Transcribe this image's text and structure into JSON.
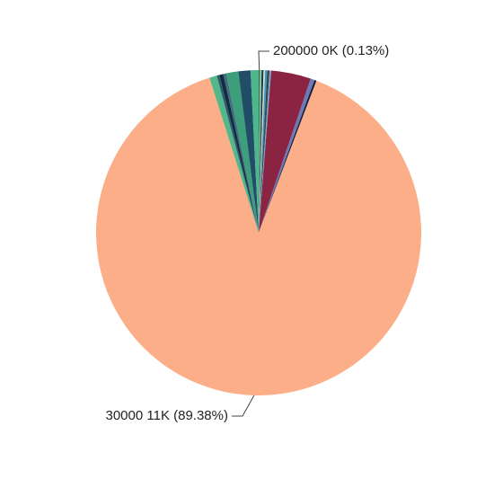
{
  "chart_data": {
    "type": "pie",
    "labeled_slices": [
      {
        "label": "30000 11K (89.38%)",
        "percent": 89.38,
        "color": "#FCAE88"
      },
      {
        "label": "200000 0K (0.13%)",
        "percent": 0.13,
        "color": "#3B6E47"
      }
    ],
    "unlabeled_slices": [
      {
        "percent": 0.15,
        "color": "#8DD3A3"
      },
      {
        "percent": 0.2,
        "color": "#1E3A5F"
      },
      {
        "percent": 0.15,
        "color": "#C8E6B4"
      },
      {
        "percent": 0.2,
        "color": "#4A90C2"
      },
      {
        "percent": 0.25,
        "color": "#2F4F4F"
      },
      {
        "percent": 0.15,
        "color": "#7FA8D8"
      },
      {
        "percent": 3.96,
        "color": "#8B2443"
      },
      {
        "percent": 0.4,
        "color": "#6C7BB8"
      },
      {
        "percent": 0.2,
        "color": "#1A1A3A"
      },
      {
        "percent": 0.75,
        "color": "#53B78A"
      },
      {
        "percent": 0.25,
        "color": "#2E5A6E"
      },
      {
        "percent": 0.4,
        "color": "#0F2F3F"
      },
      {
        "percent": 0.3,
        "color": "#446B80"
      },
      {
        "percent": 1.2,
        "color": "#3C9E7A"
      },
      {
        "percent": 1.2,
        "color": "#1F4E66"
      },
      {
        "percent": 0.8,
        "color": "#4FB58C"
      }
    ],
    "grid": false,
    "legend": "none"
  }
}
